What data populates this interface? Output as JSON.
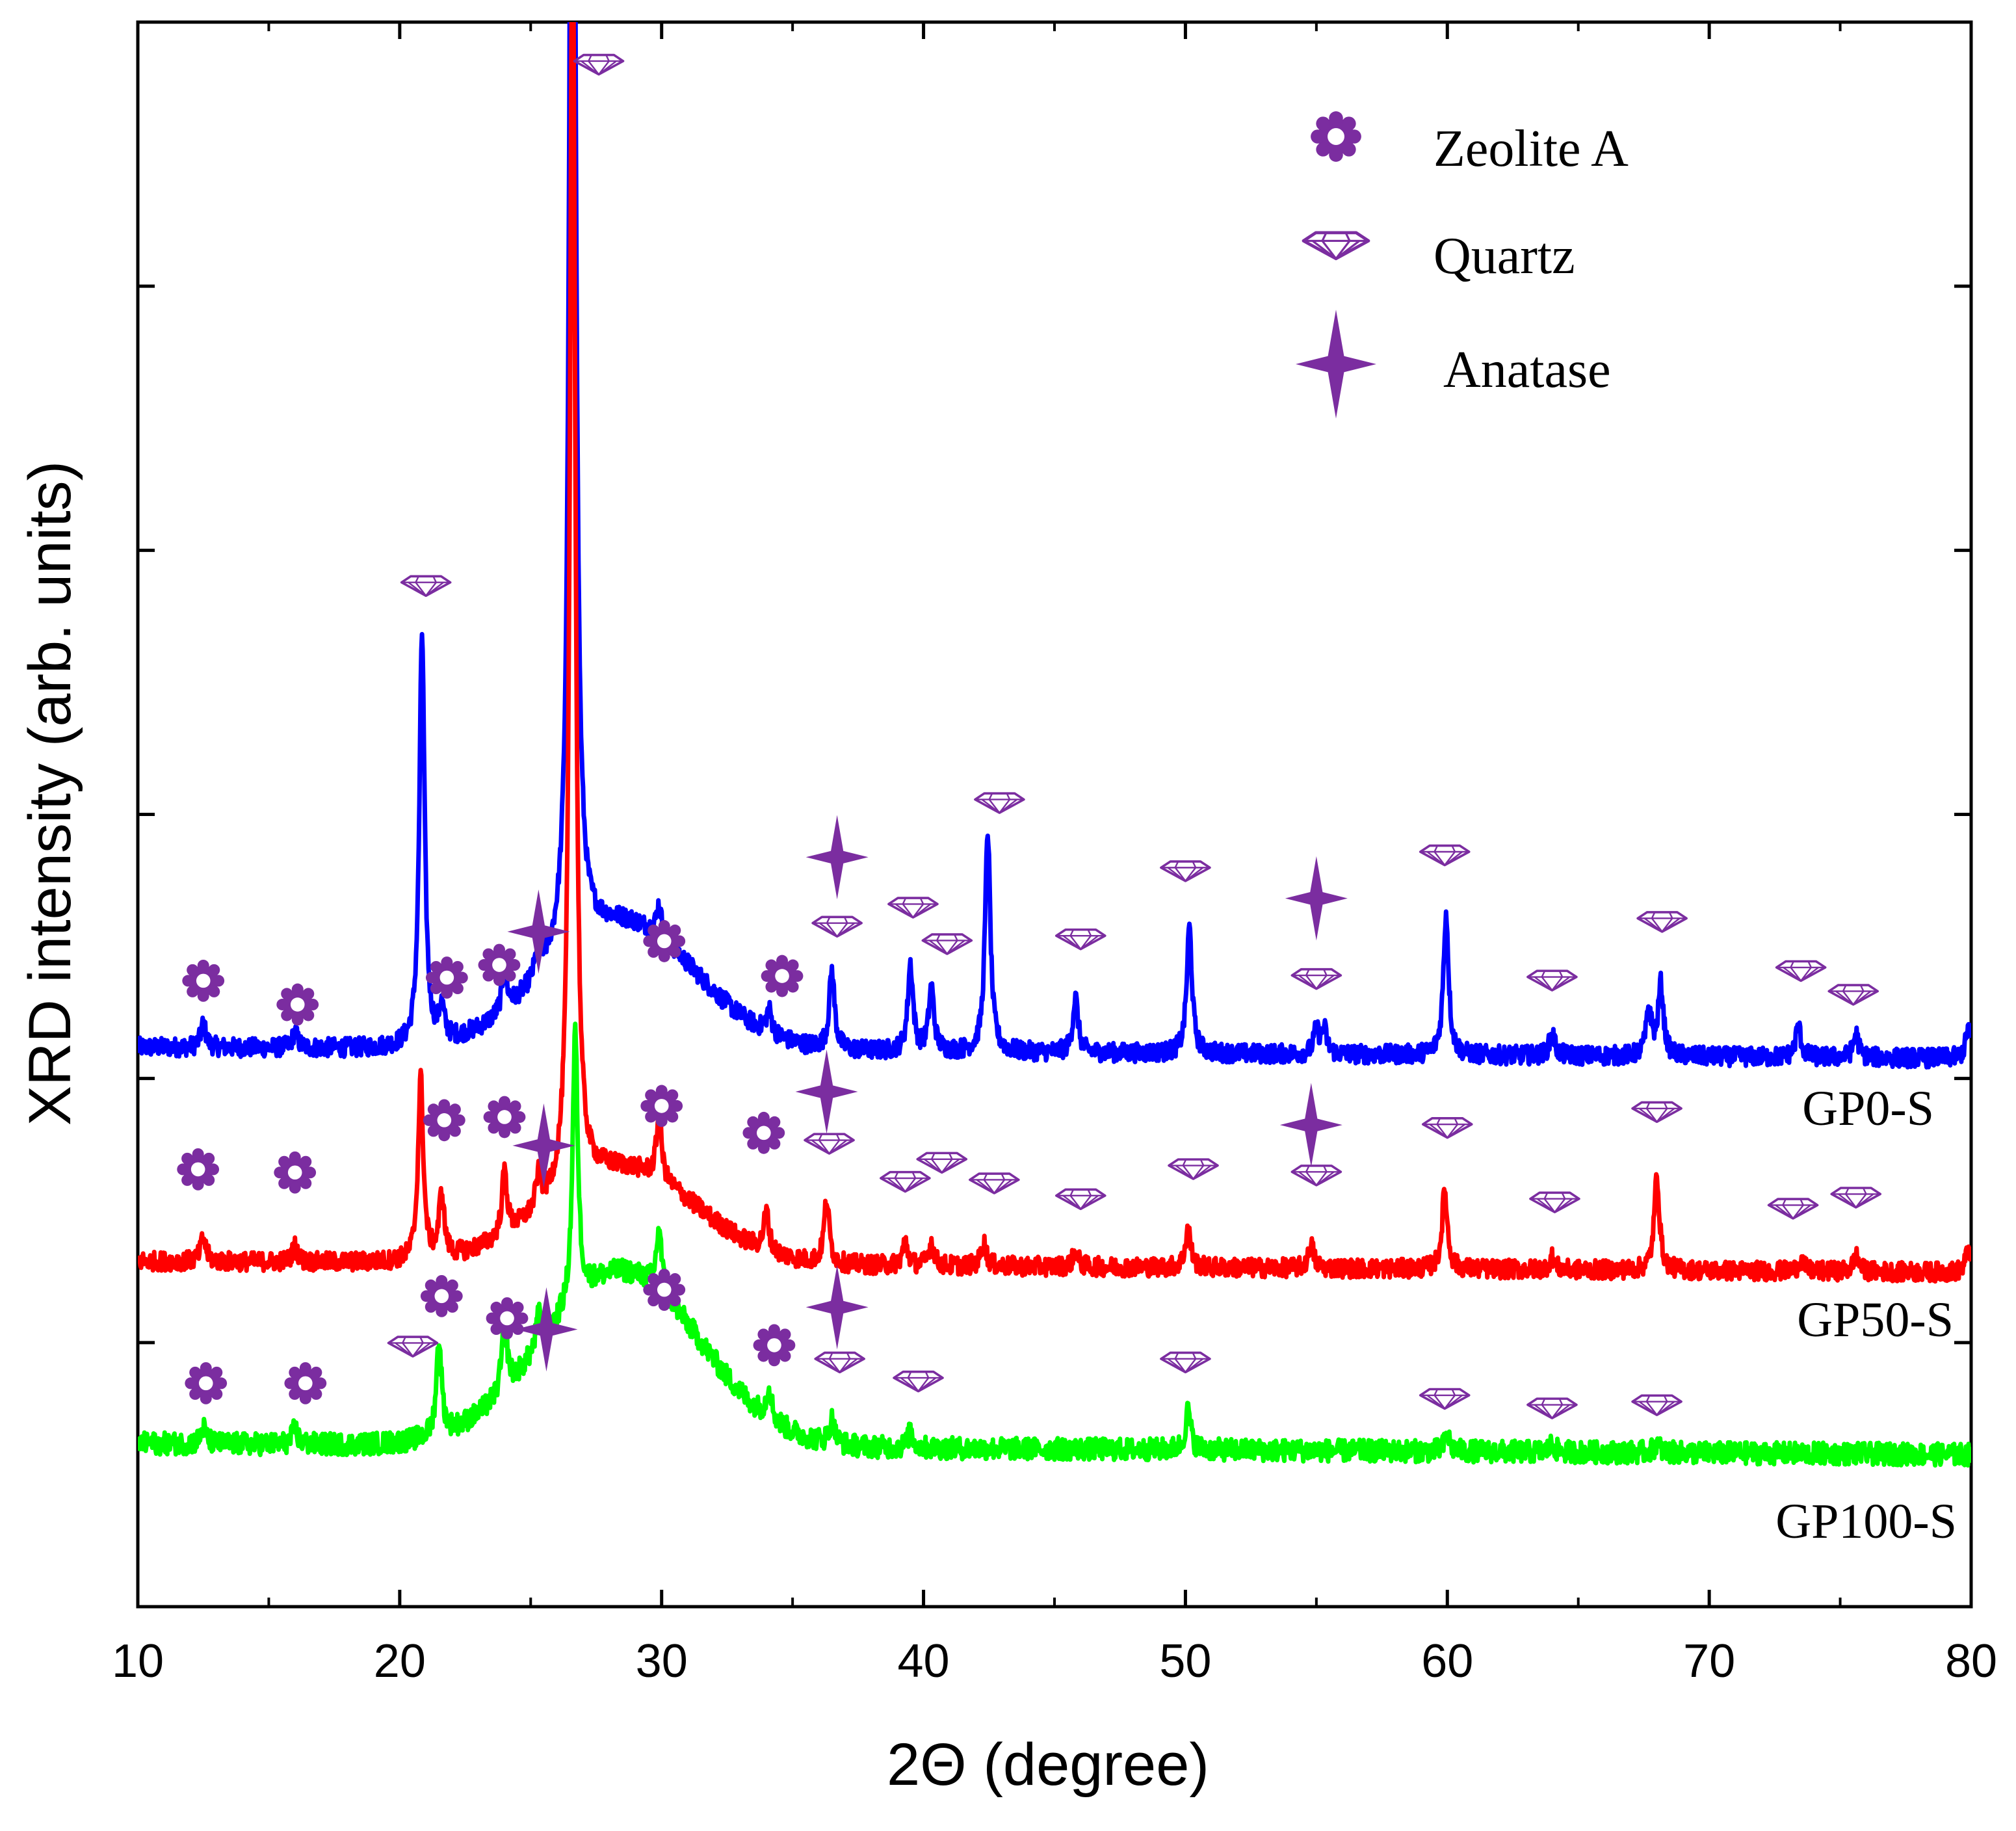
{
  "chart_data": {
    "type": "line",
    "xlabel": "2Θ (degree)",
    "ylabel": "XRD intensity (arb. units)",
    "xlim": [
      10,
      80
    ],
    "ylim": [
      0,
      100
    ],
    "xticks": [
      10,
      20,
      30,
      40,
      50,
      60,
      70,
      80
    ],
    "grid": false,
    "legend_position": "top-right",
    "legend": [
      {
        "label": "Zeolite A",
        "marker": "gear-icon"
      },
      {
        "label": "Quartz",
        "marker": "diamond-icon"
      },
      {
        "label": "Anatase",
        "marker": "star-icon"
      }
    ],
    "series": [
      {
        "name": "GP0-S",
        "color": "#0000ff",
        "baseline": 35.0,
        "hump": [
          8,
          28.5,
          4.0
        ],
        "noise": 0.6,
        "peaks": [
          [
            12.5,
            1.5
          ],
          [
            16.0,
            1.0
          ],
          [
            20.85,
            26.0
          ],
          [
            21.6,
            2.0
          ],
          [
            24.0,
            2.5
          ],
          [
            25.3,
            2.0
          ],
          [
            26.6,
            110.0
          ],
          [
            29.9,
            2.0
          ],
          [
            34.1,
            1.5
          ],
          [
            36.5,
            5.0
          ],
          [
            39.5,
            5.5
          ],
          [
            40.3,
            4.0
          ],
          [
            42.45,
            14.0
          ],
          [
            45.8,
            3.5
          ],
          [
            50.15,
            8.0
          ],
          [
            55.0,
            1.5
          ],
          [
            55.3,
            1.5
          ],
          [
            59.95,
            9.0
          ],
          [
            64.0,
            1.5
          ],
          [
            67.7,
            3.0
          ],
          [
            68.15,
            4.5
          ],
          [
            73.4,
            2.0
          ],
          [
            75.6,
            1.5
          ],
          [
            79.9,
            2.0
          ]
        ]
      },
      {
        "name": "GP50-S",
        "color": "#ff0000",
        "baseline": 21.5,
        "hump": [
          6,
          28.5,
          4.0
        ],
        "noise": 0.6,
        "peaks": [
          [
            12.5,
            1.5
          ],
          [
            16.0,
            1.0
          ],
          [
            20.8,
            11.5
          ],
          [
            21.6,
            4.0
          ],
          [
            24.0,
            4.0
          ],
          [
            25.3,
            2.0
          ],
          [
            26.6,
            82.0
          ],
          [
            29.9,
            4.0
          ],
          [
            34.0,
            2.5
          ],
          [
            36.3,
            4.0
          ],
          [
            39.3,
            1.5
          ],
          [
            40.3,
            1.5
          ],
          [
            42.3,
            1.5
          ],
          [
            45.8,
            1.0
          ],
          [
            50.1,
            2.5
          ],
          [
            54.8,
            1.5
          ],
          [
            59.9,
            5.0
          ],
          [
            64.0,
            0.8
          ],
          [
            68.0,
            6.0
          ],
          [
            73.5,
            0.7
          ],
          [
            75.6,
            1.0
          ],
          [
            79.9,
            1.5
          ]
        ]
      },
      {
        "name": "GP100-S",
        "color": "#00ff00",
        "baseline": 10.0,
        "hump": [
          11,
          28.5,
          4.2
        ],
        "noise": 0.7,
        "peaks": [
          [
            12.5,
            1.0
          ],
          [
            16.0,
            1.0
          ],
          [
            21.5,
            6.0
          ],
          [
            24.0,
            4.5
          ],
          [
            25.3,
            2.0
          ],
          [
            26.7,
            17.0
          ],
          [
            29.9,
            4.0
          ],
          [
            34.1,
            2.0
          ],
          [
            36.5,
            1.5
          ],
          [
            39.5,
            1.0
          ],
          [
            50.1,
            2.5
          ],
          [
            60.0,
            1.0
          ],
          [
            64.0,
            0.5
          ],
          [
            68.0,
            0.6
          ]
        ]
      }
    ],
    "annotations": [
      {
        "marker": "gear-icon",
        "x": 12.5,
        "y": 39.5
      },
      {
        "marker": "gear-icon",
        "x": 16.1,
        "y": 38.0
      },
      {
        "marker": "gear-icon",
        "x": 21.8,
        "y": 39.7
      },
      {
        "marker": "gear-icon",
        "x": 23.8,
        "y": 40.5
      },
      {
        "marker": "gear-icon",
        "x": 30.1,
        "y": 42.0
      },
      {
        "marker": "gear-icon",
        "x": 34.6,
        "y": 39.8
      },
      {
        "marker": "gear-icon",
        "x": 12.3,
        "y": 27.6
      },
      {
        "marker": "gear-icon",
        "x": 16.0,
        "y": 27.4
      },
      {
        "marker": "gear-icon",
        "x": 21.7,
        "y": 30.7
      },
      {
        "marker": "gear-icon",
        "x": 24.0,
        "y": 30.9
      },
      {
        "marker": "gear-icon",
        "x": 30.0,
        "y": 31.6
      },
      {
        "marker": "gear-icon",
        "x": 33.9,
        "y": 29.9
      },
      {
        "marker": "gear-icon",
        "x": 21.6,
        "y": 19.6
      },
      {
        "marker": "gear-icon",
        "x": 24.1,
        "y": 18.2
      },
      {
        "marker": "gear-icon",
        "x": 30.1,
        "y": 20.0
      },
      {
        "marker": "gear-icon",
        "x": 34.3,
        "y": 16.5
      },
      {
        "marker": "gear-icon",
        "x": 12.6,
        "y": 14.1
      },
      {
        "marker": "gear-icon",
        "x": 16.4,
        "y": 14.1
      },
      {
        "marker": "diamond-icon",
        "x": 27.6,
        "y": 97.4
      },
      {
        "marker": "diamond-icon",
        "x": 21.0,
        "y": 64.5
      },
      {
        "marker": "diamond-icon",
        "x": 36.7,
        "y": 43.0
      },
      {
        "marker": "diamond-icon",
        "x": 39.6,
        "y": 44.2
      },
      {
        "marker": "diamond-icon",
        "x": 40.9,
        "y": 41.9
      },
      {
        "marker": "diamond-icon",
        "x": 42.9,
        "y": 50.8
      },
      {
        "marker": "diamond-icon",
        "x": 46.0,
        "y": 42.2
      },
      {
        "marker": "diamond-icon",
        "x": 50.0,
        "y": 46.5
      },
      {
        "marker": "diamond-icon",
        "x": 55.0,
        "y": 39.7
      },
      {
        "marker": "diamond-icon",
        "x": 59.9,
        "y": 47.5
      },
      {
        "marker": "diamond-icon",
        "x": 64.0,
        "y": 39.6
      },
      {
        "marker": "diamond-icon",
        "x": 68.2,
        "y": 43.3
      },
      {
        "marker": "diamond-icon",
        "x": 73.5,
        "y": 40.2
      },
      {
        "marker": "diamond-icon",
        "x": 75.5,
        "y": 38.7
      },
      {
        "marker": "diamond-icon",
        "x": 36.4,
        "y": 29.3
      },
      {
        "marker": "diamond-icon",
        "x": 39.3,
        "y": 26.9
      },
      {
        "marker": "diamond-icon",
        "x": 40.7,
        "y": 28.1
      },
      {
        "marker": "diamond-icon",
        "x": 42.7,
        "y": 26.8
      },
      {
        "marker": "diamond-icon",
        "x": 46.0,
        "y": 25.8
      },
      {
        "marker": "diamond-icon",
        "x": 50.3,
        "y": 27.7
      },
      {
        "marker": "diamond-icon",
        "x": 55.0,
        "y": 27.3
      },
      {
        "marker": "diamond-icon",
        "x": 60.0,
        "y": 30.3
      },
      {
        "marker": "diamond-icon",
        "x": 64.1,
        "y": 25.6
      },
      {
        "marker": "diamond-icon",
        "x": 68.0,
        "y": 31.3
      },
      {
        "marker": "diamond-icon",
        "x": 73.2,
        "y": 25.2
      },
      {
        "marker": "diamond-icon",
        "x": 75.6,
        "y": 25.9
      },
      {
        "marker": "diamond-icon",
        "x": 20.5,
        "y": 16.5
      },
      {
        "marker": "diamond-icon",
        "x": 36.8,
        "y": 15.5
      },
      {
        "marker": "diamond-icon",
        "x": 39.8,
        "y": 14.3
      },
      {
        "marker": "diamond-icon",
        "x": 50.0,
        "y": 15.5
      },
      {
        "marker": "diamond-icon",
        "x": 59.9,
        "y": 13.2
      },
      {
        "marker": "diamond-icon",
        "x": 64.0,
        "y": 12.6
      },
      {
        "marker": "diamond-icon",
        "x": 68.0,
        "y": 12.8
      },
      {
        "marker": "star-icon",
        "x": 25.3,
        "y": 42.6
      },
      {
        "marker": "star-icon",
        "x": 36.7,
        "y": 47.3
      },
      {
        "marker": "star-icon",
        "x": 55.0,
        "y": 44.7
      },
      {
        "marker": "star-icon",
        "x": 25.5,
        "y": 29.1
      },
      {
        "marker": "star-icon",
        "x": 36.3,
        "y": 32.5
      },
      {
        "marker": "star-icon",
        "x": 54.8,
        "y": 30.4
      },
      {
        "marker": "star-icon",
        "x": 25.6,
        "y": 17.5
      },
      {
        "marker": "star-icon",
        "x": 36.7,
        "y": 18.9
      }
    ],
    "colors": {
      "marker": "#7b2da0"
    }
  }
}
